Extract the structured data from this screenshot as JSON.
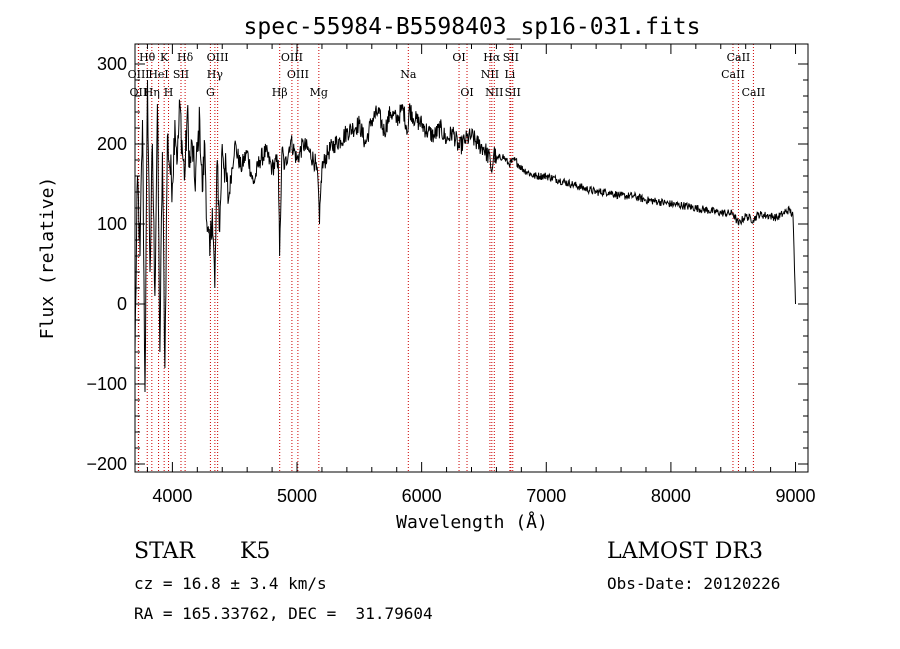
{
  "chart_data": {
    "type": "line",
    "title": "spec-55984-B5598403_sp16-031.fits",
    "xlabel": "Wavelength (Å)",
    "ylabel": "Flux (relative)",
    "xlim": [
      3700,
      9100
    ],
    "ylim": [
      -210,
      325
    ],
    "xticks": [
      4000,
      5000,
      6000,
      7000,
      8000,
      9000
    ],
    "yticks": [
      -200,
      -100,
      0,
      100,
      200,
      300
    ],
    "xtick_labels": [
      "4000",
      "5000",
      "6000",
      "7000",
      "8000",
      "9000"
    ],
    "ytick_labels": [
      "−200",
      "−100",
      "0",
      "100",
      "200",
      "300"
    ],
    "grid": false,
    "series": [
      {
        "name": "flux",
        "x": [
          3700,
          3720,
          3740,
          3760,
          3780,
          3800,
          3820,
          3840,
          3860,
          3880,
          3900,
          3920,
          3940,
          3960,
          3980,
          4000,
          4020,
          4040,
          4060,
          4080,
          4100,
          4120,
          4140,
          4160,
          4180,
          4200,
          4220,
          4240,
          4260,
          4280,
          4300,
          4320,
          4340,
          4360,
          4380,
          4400,
          4450,
          4500,
          4550,
          4600,
          4650,
          4700,
          4750,
          4800,
          4850,
          4860,
          4880,
          4900,
          4950,
          5000,
          5050,
          5100,
          5150,
          5170,
          5180,
          5190,
          5200,
          5250,
          5300,
          5350,
          5400,
          5450,
          5500,
          5550,
          5600,
          5650,
          5700,
          5750,
          5800,
          5850,
          5890,
          5900,
          5950,
          6000,
          6050,
          6100,
          6150,
          6200,
          6250,
          6300,
          6350,
          6400,
          6450,
          6500,
          6550,
          6563,
          6580,
          6600,
          6650,
          6700,
          6750,
          6800,
          6850,
          6900,
          6950,
          7000,
          7100,
          7200,
          7300,
          7400,
          7500,
          7600,
          7700,
          7800,
          7900,
          8000,
          8100,
          8200,
          8300,
          8400,
          8500,
          8540,
          8600,
          8660,
          8700,
          8800,
          8850,
          8900,
          8950,
          8980,
          9000
        ],
        "values": [
          -60,
          160,
          60,
          230,
          -110,
          280,
          40,
          200,
          10,
          250,
          -60,
          190,
          -80,
          210,
          170,
          150,
          230,
          180,
          250,
          190,
          160,
          240,
          170,
          200,
          150,
          190,
          230,
          140,
          200,
          90,
          60,
          120,
          20,
          180,
          90,
          200,
          130,
          200,
          170,
          190,
          150,
          180,
          190,
          170,
          180,
          60,
          195,
          170,
          205,
          180,
          200,
          190,
          175,
          150,
          100,
          140,
          170,
          190,
          200,
          205,
          215,
          220,
          225,
          200,
          230,
          240,
          215,
          240,
          230,
          245,
          215,
          245,
          230,
          225,
          215,
          210,
          220,
          205,
          215,
          195,
          205,
          210,
          200,
          195,
          180,
          165,
          190,
          180,
          185,
          175,
          180,
          170,
          165,
          160,
          160,
          160,
          155,
          150,
          145,
          140,
          140,
          135,
          135,
          130,
          128,
          125,
          123,
          120,
          117,
          114,
          113,
          100,
          110,
          105,
          112,
          110,
          108,
          113,
          118,
          110,
          0
        ]
      }
    ],
    "lines": [
      {
        "name": "OII",
        "wavelength": 3727,
        "row": 2
      },
      {
        "name": "Hθ",
        "wavelength": 3798,
        "row": 0
      },
      {
        "name": "OIII",
        "wavelength": 3729,
        "row": 1
      },
      {
        "name": "Hη",
        "wavelength": 3835,
        "row": 2
      },
      {
        "name": "HeI",
        "wavelength": 3889,
        "row": 1
      },
      {
        "name": "K",
        "wavelength": 3934,
        "row": 0
      },
      {
        "name": "H",
        "wavelength": 3969,
        "row": 2
      },
      {
        "name": "SII",
        "wavelength": 4069,
        "row": 1
      },
      {
        "name": "Hδ",
        "wavelength": 4102,
        "row": 0
      },
      {
        "name": "OIII",
        "wavelength": 4363,
        "row": 0
      },
      {
        "name": "Hγ",
        "wavelength": 4341,
        "row": 1
      },
      {
        "name": "G",
        "wavelength": 4305,
        "row": 2
      },
      {
        "name": "Hβ",
        "wavelength": 4861,
        "row": 2
      },
      {
        "name": "OIII",
        "wavelength": 4959,
        "row": 0
      },
      {
        "name": "OIII",
        "wavelength": 5007,
        "row": 1
      },
      {
        "name": "Mg",
        "wavelength": 5175,
        "row": 2
      },
      {
        "name": "Na",
        "wavelength": 5893,
        "row": 1
      },
      {
        "name": "OI",
        "wavelength": 6300,
        "row": 0
      },
      {
        "name": "OI",
        "wavelength": 6364,
        "row": 2
      },
      {
        "name": "Hα",
        "wavelength": 6563,
        "row": 0
      },
      {
        "name": "NII",
        "wavelength": 6548,
        "row": 1
      },
      {
        "name": "NII",
        "wavelength": 6583,
        "row": 2
      },
      {
        "name": "SII",
        "wavelength": 6716,
        "row": 0
      },
      {
        "name": "Li",
        "wavelength": 6708,
        "row": 1
      },
      {
        "name": "SII",
        "wavelength": 6731,
        "row": 2
      },
      {
        "name": "CaII",
        "wavelength": 8542,
        "row": 0
      },
      {
        "name": "CaII",
        "wavelength": 8498,
        "row": 1
      },
      {
        "name": "CaII",
        "wavelength": 8662,
        "row": 2
      }
    ]
  },
  "info": {
    "class_label": "STAR",
    "subclass": "K5",
    "survey": "LAMOST DR3",
    "redshift_text": "cz = 16.8 ± 3.4 km/s",
    "obs_date_text": "Obs-Date: 20120226",
    "coords_text": "RA = 165.33762, DEC =  31.79604"
  }
}
